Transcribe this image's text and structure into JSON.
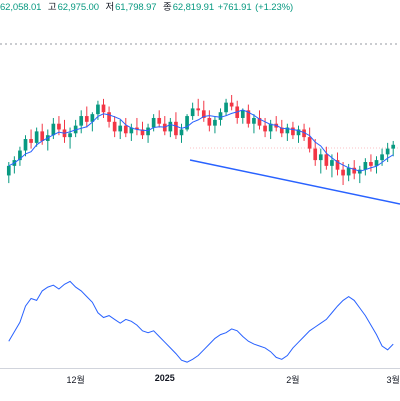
{
  "header": {
    "open_value": "62,058.01",
    "high_label": "고",
    "high_value": "62,975.00",
    "low_label": "저",
    "low_value": "61,798.97",
    "close_label": "종",
    "close_value": "62,819.91",
    "change": "+761.91",
    "change_pct": "(+1.23%)",
    "up_color": "#089981"
  },
  "x_axis": {
    "labels": [
      {
        "text": "12월",
        "index": 12,
        "bold": false
      },
      {
        "text": "2025",
        "index": 28,
        "bold": true
      },
      {
        "text": "2월",
        "index": 51,
        "bold": false
      },
      {
        "text": "3월",
        "index": 69,
        "bold": false
      }
    ]
  },
  "chart_data": {
    "type": "candlestick",
    "up_color": "#089981",
    "down_color": "#f23645",
    "ma_color": "#2962ff",
    "dotted_line_level": "upper",
    "trendline_color": "#2962ff",
    "candles": [
      [
        100.5,
        101.2,
        100.1,
        101.0
      ],
      [
        101.0,
        101.5,
        100.6,
        101.3
      ],
      [
        101.3,
        102.0,
        101.0,
        101.8
      ],
      [
        101.8,
        102.6,
        101.5,
        102.4
      ],
      [
        102.4,
        102.9,
        101.9,
        102.2
      ],
      [
        102.2,
        103.0,
        102.0,
        102.8
      ],
      [
        102.8,
        103.2,
        102.1,
        102.3
      ],
      [
        102.3,
        102.9,
        101.8,
        102.6
      ],
      [
        102.6,
        103.5,
        102.4,
        103.2
      ],
      [
        103.2,
        103.6,
        102.6,
        102.9
      ],
      [
        102.9,
        103.4,
        102.2,
        102.5
      ],
      [
        102.5,
        103.0,
        101.9,
        102.7
      ],
      [
        102.7,
        103.4,
        102.5,
        103.1
      ],
      [
        103.1,
        103.9,
        102.7,
        103.6
      ],
      [
        103.6,
        104.1,
        103.0,
        103.3
      ],
      [
        103.3,
        103.8,
        102.8,
        103.7
      ],
      [
        103.7,
        104.4,
        103.4,
        104.2
      ],
      [
        104.2,
        104.5,
        103.5,
        103.8
      ],
      [
        103.8,
        104.1,
        103.0,
        103.3
      ],
      [
        103.3,
        103.6,
        102.5,
        102.8
      ],
      [
        102.8,
        103.4,
        102.4,
        103.1
      ],
      [
        103.1,
        103.5,
        102.5,
        102.7
      ],
      [
        102.7,
        103.2,
        102.3,
        103.0
      ],
      [
        103.0,
        103.5,
        102.6,
        102.9
      ],
      [
        102.9,
        103.3,
        102.4,
        102.6
      ],
      [
        102.6,
        103.2,
        102.2,
        103.0
      ],
      [
        103.0,
        103.7,
        102.8,
        103.5
      ],
      [
        103.5,
        103.9,
        103.0,
        103.2
      ],
      [
        103.2,
        103.6,
        102.6,
        102.8
      ],
      [
        102.8,
        103.5,
        102.5,
        103.3
      ],
      [
        103.3,
        103.8,
        102.4,
        102.6
      ],
      [
        102.6,
        103.2,
        102.2,
        102.9
      ],
      [
        102.9,
        103.7,
        102.8,
        103.6
      ],
      [
        103.6,
        104.3,
        103.4,
        104.0
      ],
      [
        104.0,
        104.5,
        103.6,
        103.9
      ],
      [
        103.9,
        104.4,
        103.3,
        103.5
      ],
      [
        103.5,
        103.9,
        102.8,
        103.1
      ],
      [
        103.1,
        103.6,
        102.7,
        103.4
      ],
      [
        103.4,
        104.0,
        103.1,
        103.8
      ],
      [
        103.8,
        104.5,
        103.6,
        104.3
      ],
      [
        104.3,
        104.7,
        103.9,
        104.1
      ],
      [
        104.1,
        104.4,
        103.2,
        103.5
      ],
      [
        103.5,
        104.0,
        103.2,
        103.9
      ],
      [
        103.9,
        104.2,
        103.0,
        103.2
      ],
      [
        103.2,
        103.7,
        102.7,
        103.5
      ],
      [
        103.5,
        103.9,
        102.9,
        103.1
      ],
      [
        103.1,
        103.5,
        102.5,
        102.8
      ],
      [
        102.8,
        103.4,
        102.4,
        103.2
      ],
      [
        103.2,
        103.6,
        102.8,
        103.0
      ],
      [
        103.0,
        103.4,
        102.5,
        102.7
      ],
      [
        102.7,
        103.2,
        102.3,
        103.0
      ],
      [
        103.0,
        103.3,
        102.4,
        102.6
      ],
      [
        102.6,
        103.1,
        102.2,
        102.9
      ],
      [
        102.9,
        103.2,
        102.3,
        102.5
      ],
      [
        102.5,
        103.0,
        101.7,
        101.9
      ],
      [
        101.9,
        102.4,
        101.0,
        101.3
      ],
      [
        101.3,
        101.9,
        100.6,
        101.6
      ],
      [
        101.6,
        102.0,
        100.8,
        101.0
      ],
      [
        101.0,
        101.6,
        100.4,
        101.3
      ],
      [
        101.3,
        101.7,
        100.5,
        100.8
      ],
      [
        100.8,
        101.2,
        100.0,
        100.5
      ],
      [
        100.5,
        101.1,
        100.2,
        100.9
      ],
      [
        100.9,
        101.3,
        100.3,
        100.6
      ],
      [
        100.6,
        101.0,
        100.1,
        100.8
      ],
      [
        100.8,
        101.4,
        100.5,
        101.2
      ],
      [
        101.2,
        101.6,
        100.7,
        101.0
      ],
      [
        101.0,
        101.5,
        100.6,
        101.3
      ],
      [
        101.3,
        101.9,
        101.0,
        101.6
      ],
      [
        101.6,
        102.2,
        101.2,
        101.9
      ],
      [
        101.9,
        102.3,
        101.5,
        102.1
      ]
    ],
    "oscillator": [
      0.25,
      0.35,
      0.45,
      0.62,
      0.7,
      0.68,
      0.78,
      0.82,
      0.84,
      0.8,
      0.85,
      0.88,
      0.82,
      0.78,
      0.72,
      0.66,
      0.55,
      0.5,
      0.52,
      0.48,
      0.44,
      0.48,
      0.46,
      0.42,
      0.36,
      0.34,
      0.36,
      0.3,
      0.24,
      0.18,
      0.12,
      0.05,
      0.03,
      0.06,
      0.1,
      0.16,
      0.22,
      0.28,
      0.32,
      0.34,
      0.38,
      0.36,
      0.3,
      0.25,
      0.22,
      0.2,
      0.18,
      0.14,
      0.08,
      0.06,
      0.1,
      0.18,
      0.24,
      0.3,
      0.36,
      0.4,
      0.44,
      0.48,
      0.55,
      0.62,
      0.68,
      0.72,
      0.68,
      0.6,
      0.52,
      0.42,
      0.32,
      0.2,
      0.16,
      0.22
    ]
  }
}
